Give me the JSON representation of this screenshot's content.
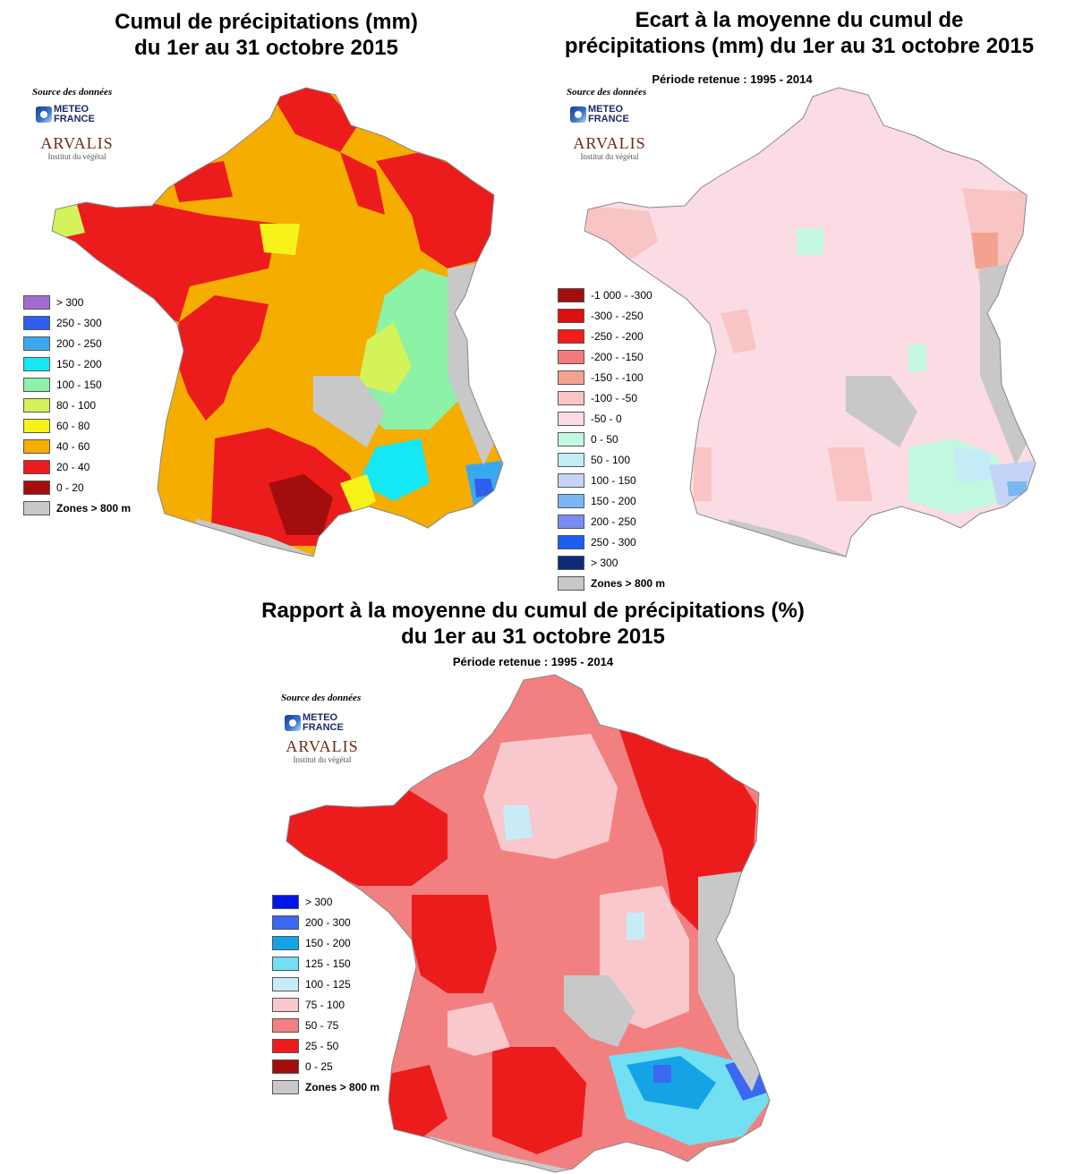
{
  "maps": [
    {
      "id": "cumul",
      "title": [
        "Cumul de précipitations (mm)",
        "du 1er au 31 octobre 2015"
      ],
      "subtitle": "",
      "source_label": "Source des données",
      "legend": [
        {
          "label": "> 300",
          "color": "#a46cd3"
        },
        {
          "label": "250 - 300",
          "color": "#2e5ff0"
        },
        {
          "label": "200 - 250",
          "color": "#3aa8f0"
        },
        {
          "label": "150 - 200",
          "color": "#14e8f4"
        },
        {
          "label": "100 - 150",
          "color": "#8cf2a8"
        },
        {
          "label": "80 - 100",
          "color": "#d4f25a"
        },
        {
          "label": "60 - 80",
          "color": "#f7f31a"
        },
        {
          "label": "40 - 60",
          "color": "#f5ad00"
        },
        {
          "label": "20 - 40",
          "color": "#ec1c1c"
        },
        {
          "label": "0 - 20",
          "color": "#a30d0d"
        },
        {
          "label": "Zones > 800 m",
          "color": "#c8c8c8"
        }
      ]
    },
    {
      "id": "ecart",
      "title": [
        "Ecart à la moyenne du cumul de",
        "précipitations (mm) du 1er au 31 octobre 2015"
      ],
      "subtitle": "Période retenue : 1995 - 2014",
      "source_label": "Source des données",
      "legend": [
        {
          "label": "-1 000 - -300",
          "color": "#a30d0d"
        },
        {
          "label": "-300 - -250",
          "color": "#dd1010"
        },
        {
          "label": "-250 - -200",
          "color": "#f31c1c"
        },
        {
          "label": "-200 - -150",
          "color": "#f27a7a"
        },
        {
          "label": "-150 - -100",
          "color": "#f5a18f"
        },
        {
          "label": "-100 - -50",
          "color": "#f8c4c4"
        },
        {
          "label": "-50 - 0",
          "color": "#fcdce4"
        },
        {
          "label": "0 - 50",
          "color": "#c2f7e0"
        },
        {
          "label": "50 - 100",
          "color": "#c4ecf7"
        },
        {
          "label": "100 - 150",
          "color": "#c4d4f7"
        },
        {
          "label": "150 - 200",
          "color": "#7ab6f2"
        },
        {
          "label": "200 - 250",
          "color": "#7a8cf2"
        },
        {
          "label": "250 - 300",
          "color": "#1a5ff0"
        },
        {
          "label": "> 300",
          "color": "#0d2a7a"
        },
        {
          "label": "Zones > 800 m",
          "color": "#c8c8c8"
        }
      ]
    },
    {
      "id": "rapport",
      "title": [
        "Rapport à la moyenne du cumul de précipitations (%)",
        "du 1er au 31 octobre 2015"
      ],
      "subtitle": "Période retenue :  1995 - 2014",
      "source_label": "Source des données",
      "legend": [
        {
          "label": "> 300",
          "color": "#0014e6"
        },
        {
          "label": "200 - 300",
          "color": "#3a68f0"
        },
        {
          "label": "150 - 200",
          "color": "#14a4e6"
        },
        {
          "label": "125 - 150",
          "color": "#72e0f2"
        },
        {
          "label": "100 - 125",
          "color": "#c8ecf7"
        },
        {
          "label": "75 - 100",
          "color": "#f8c8cc"
        },
        {
          "label": "50 - 75",
          "color": "#f28080"
        },
        {
          "label": "25 - 50",
          "color": "#ec1c1c"
        },
        {
          "label": "0 - 25",
          "color": "#a30d0d"
        },
        {
          "label": "Zones > 800 m",
          "color": "#c8c8c8"
        }
      ]
    }
  ],
  "logos": {
    "meteo_france": [
      "METEO",
      "FRANCE"
    ],
    "arvalis": {
      "name": "ARVALIS",
      "tagline": "Institut du végétal"
    }
  },
  "icons": {
    "meteo_france": "meteo-france-logo-icon",
    "arvalis": "arvalis-logo-icon"
  }
}
